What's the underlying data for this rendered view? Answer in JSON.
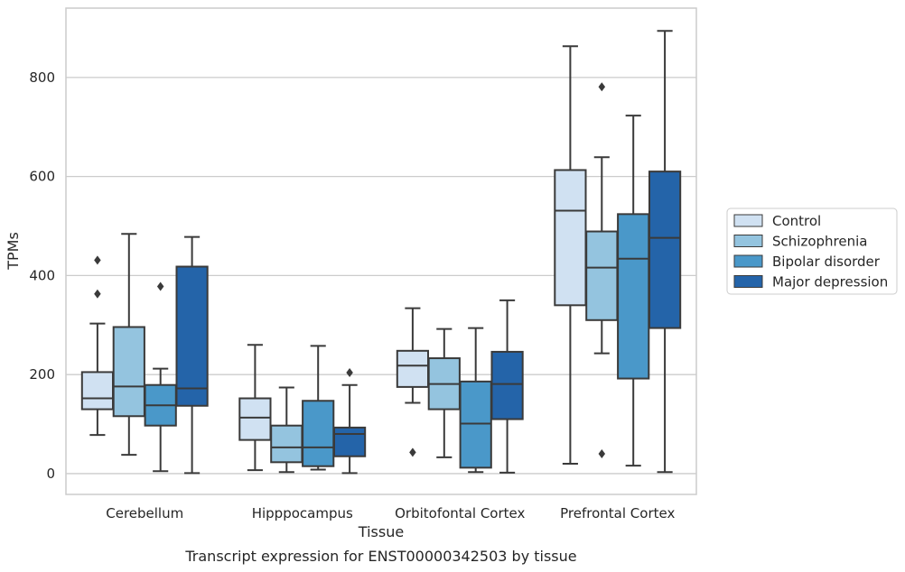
{
  "chart_data": {
    "type": "box",
    "title": "",
    "caption": "Transcript expression for ENST00000342503 by tissue",
    "xlabel": "Tissue",
    "ylabel": "TPMs",
    "ylim": [
      -42,
      940
    ],
    "yticks": [
      0,
      200,
      400,
      600,
      800
    ],
    "grid": "horizontal",
    "legend_position": "right",
    "categories": [
      "Cerebellum",
      "Hipppocampus",
      "Orbitofontal Cortex",
      "Prefrontal Cortex"
    ],
    "series": [
      {
        "name": "Control",
        "color": "#d0e1f2",
        "boxes": [
          {
            "min": 78,
            "q1": 130,
            "median": 152,
            "q3": 205,
            "max": 303,
            "outliers": [
              363,
              431
            ]
          },
          {
            "min": 7,
            "q1": 68,
            "median": 113,
            "q3": 152,
            "max": 260,
            "outliers": []
          },
          {
            "min": 143,
            "q1": 175,
            "median": 218,
            "q3": 248,
            "max": 334,
            "outliers": [
              43
            ]
          },
          {
            "min": 20,
            "q1": 340,
            "median": 531,
            "q3": 613,
            "max": 863,
            "outliers": []
          }
        ]
      },
      {
        "name": "Schizophrenia",
        "color": "#94c4df",
        "boxes": [
          {
            "min": 38,
            "q1": 116,
            "median": 176,
            "q3": 296,
            "max": 484,
            "outliers": []
          },
          {
            "min": 3,
            "q1": 23,
            "median": 53,
            "q3": 97,
            "max": 174,
            "outliers": []
          },
          {
            "min": 33,
            "q1": 130,
            "median": 181,
            "q3": 233,
            "max": 292,
            "outliers": []
          },
          {
            "min": 243,
            "q1": 310,
            "median": 416,
            "q3": 489,
            "max": 639,
            "outliers": [
              40,
              781
            ]
          }
        ]
      },
      {
        "name": "Bipolar disorder",
        "color": "#4a98c9",
        "boxes": [
          {
            "min": 5,
            "q1": 97,
            "median": 138,
            "q3": 179,
            "max": 212,
            "outliers": [
              378
            ]
          },
          {
            "min": 8,
            "q1": 15,
            "median": 53,
            "q3": 147,
            "max": 258,
            "outliers": []
          },
          {
            "min": 3,
            "q1": 12,
            "median": 101,
            "q3": 186,
            "max": 294,
            "outliers": []
          },
          {
            "min": 16,
            "q1": 192,
            "median": 434,
            "q3": 524,
            "max": 723,
            "outliers": []
          }
        ]
      },
      {
        "name": "Major depression",
        "color": "#2464a9",
        "boxes": [
          {
            "min": 1,
            "q1": 137,
            "median": 172,
            "q3": 418,
            "max": 478,
            "outliers": []
          },
          {
            "min": 1,
            "q1": 35,
            "median": 80,
            "q3": 93,
            "max": 179,
            "outliers": [
              204
            ]
          },
          {
            "min": 2,
            "q1": 110,
            "median": 181,
            "q3": 246,
            "max": 350,
            "outliers": []
          },
          {
            "min": 3,
            "q1": 294,
            "median": 476,
            "q3": 610,
            "max": 894,
            "outliers": []
          }
        ]
      }
    ]
  }
}
